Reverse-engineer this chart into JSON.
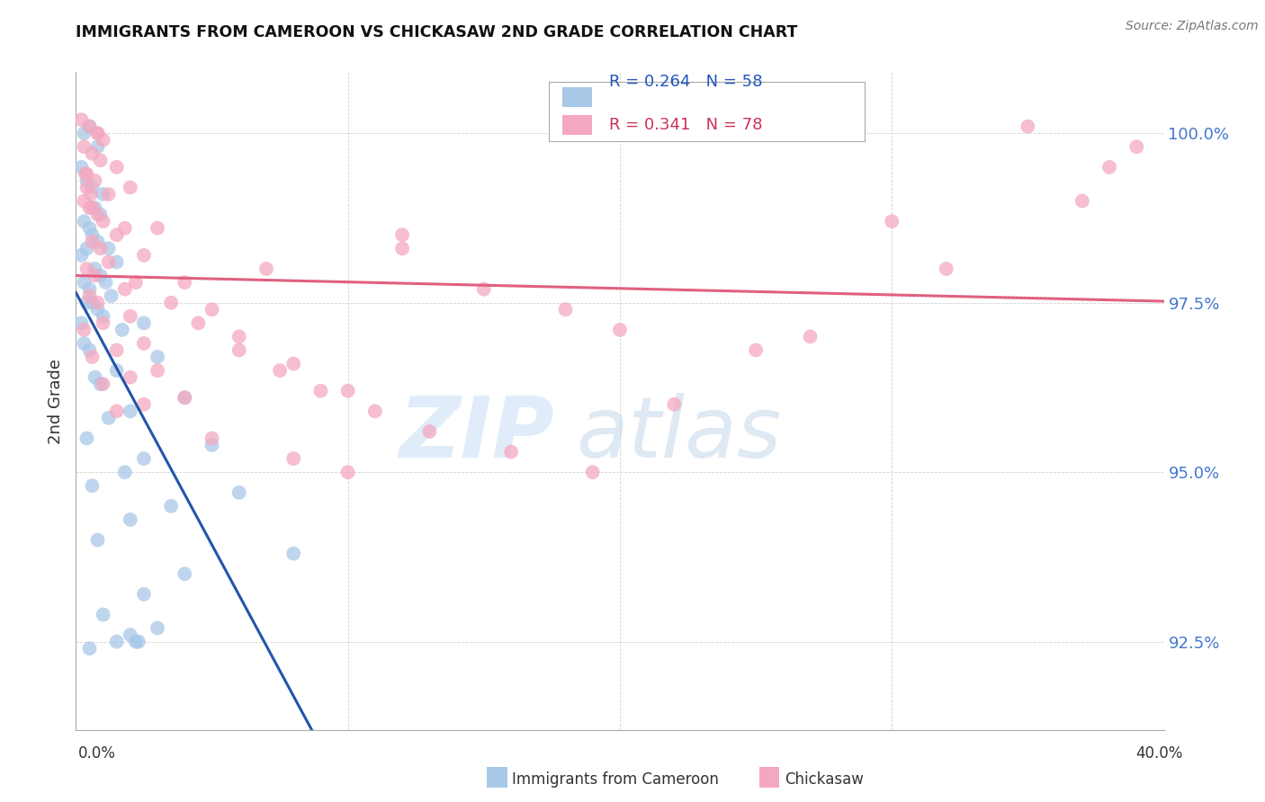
{
  "title": "IMMIGRANTS FROM CAMEROON VS CHICKASAW 2ND GRADE CORRELATION CHART",
  "source": "Source: ZipAtlas.com",
  "ylabel": "2nd Grade",
  "ytick_labels": [
    "92.5%",
    "95.0%",
    "97.5%",
    "100.0%"
  ],
  "ytick_values": [
    92.5,
    95.0,
    97.5,
    100.0
  ],
  "ymin": 91.2,
  "ymax": 100.9,
  "xmin": 0.0,
  "xmax": 40.0,
  "blue_R": "0.264",
  "blue_N": "58",
  "pink_R": "0.341",
  "pink_N": "78",
  "legend_label_blue": "Immigrants from Cameroon",
  "legend_label_pink": "Chickasaw",
  "blue_color": "#a8c8e8",
  "pink_color": "#f4a8c0",
  "blue_line_color": "#2255aa",
  "pink_line_color": "#e06080",
  "blue_scatter_x": [
    0.3,
    0.5,
    0.8,
    0.2,
    0.4,
    0.6,
    1.0,
    0.7,
    0.9,
    0.3,
    0.5,
    0.6,
    0.8,
    0.4,
    1.2,
    0.2,
    1.5,
    0.7,
    0.9,
    1.1,
    0.3,
    0.5,
    1.3,
    0.6,
    0.4,
    0.8,
    1.0,
    2.5,
    0.2,
    1.7,
    0.3,
    0.5,
    3.0,
    1.5,
    0.7,
    0.9,
    4.0,
    2.0,
    1.2,
    0.4,
    5.0,
    2.5,
    1.8,
    0.6,
    6.0,
    3.5,
    2.0,
    0.8,
    8.0,
    4.0,
    2.5,
    1.0,
    3.0,
    2.0,
    2.2,
    2.3,
    1.5,
    0.5
  ],
  "blue_scatter_y": [
    100.0,
    100.1,
    99.8,
    99.5,
    99.3,
    99.2,
    99.1,
    98.9,
    98.8,
    98.7,
    98.6,
    98.5,
    98.4,
    98.3,
    98.3,
    98.2,
    98.1,
    98.0,
    97.9,
    97.8,
    97.8,
    97.7,
    97.6,
    97.5,
    97.5,
    97.4,
    97.3,
    97.2,
    97.2,
    97.1,
    96.9,
    96.8,
    96.7,
    96.5,
    96.4,
    96.3,
    96.1,
    95.9,
    95.8,
    95.5,
    95.4,
    95.2,
    95.0,
    94.8,
    94.7,
    94.5,
    94.3,
    94.0,
    93.8,
    93.5,
    93.2,
    92.9,
    92.7,
    92.6,
    92.5,
    92.5,
    92.5,
    92.4
  ],
  "pink_scatter_x": [
    0.2,
    0.5,
    0.8,
    1.0,
    0.3,
    0.6,
    0.9,
    1.5,
    0.4,
    0.7,
    2.0,
    1.2,
    0.3,
    0.5,
    0.8,
    1.0,
    3.0,
    1.5,
    0.6,
    0.9,
    2.5,
    1.2,
    0.4,
    0.7,
    4.0,
    1.8,
    0.5,
    0.8,
    5.0,
    2.0,
    1.0,
    0.3,
    6.0,
    2.5,
    1.5,
    0.6,
    8.0,
    3.0,
    2.0,
    1.0,
    10.0,
    4.0,
    2.5,
    1.5,
    12.0,
    7.0,
    15.0,
    5.0,
    18.0,
    8.0,
    20.0,
    10.0,
    25.0,
    12.0,
    30.0,
    35.0,
    0.4,
    0.6,
    1.8,
    2.2,
    3.5,
    4.5,
    6.0,
    7.5,
    9.0,
    11.0,
    13.0,
    16.0,
    19.0,
    22.0,
    27.0,
    32.0,
    37.0,
    38.0,
    39.0,
    0.8,
    0.35,
    0.55
  ],
  "pink_scatter_y": [
    100.2,
    100.1,
    100.0,
    99.9,
    99.8,
    99.7,
    99.6,
    99.5,
    99.4,
    99.3,
    99.2,
    99.1,
    99.0,
    98.9,
    98.8,
    98.7,
    98.6,
    98.5,
    98.4,
    98.3,
    98.2,
    98.1,
    98.0,
    97.9,
    97.8,
    97.7,
    97.6,
    97.5,
    97.4,
    97.3,
    97.2,
    97.1,
    97.0,
    96.9,
    96.8,
    96.7,
    96.6,
    96.5,
    96.4,
    96.3,
    96.2,
    96.1,
    96.0,
    95.9,
    98.3,
    98.0,
    97.7,
    95.5,
    97.4,
    95.2,
    97.1,
    95.0,
    96.8,
    98.5,
    98.7,
    100.1,
    99.2,
    98.9,
    98.6,
    97.8,
    97.5,
    97.2,
    96.8,
    96.5,
    96.2,
    95.9,
    95.6,
    95.3,
    95.0,
    96.0,
    97.0,
    98.0,
    99.0,
    99.5,
    99.8,
    100.0,
    99.4,
    99.1
  ]
}
